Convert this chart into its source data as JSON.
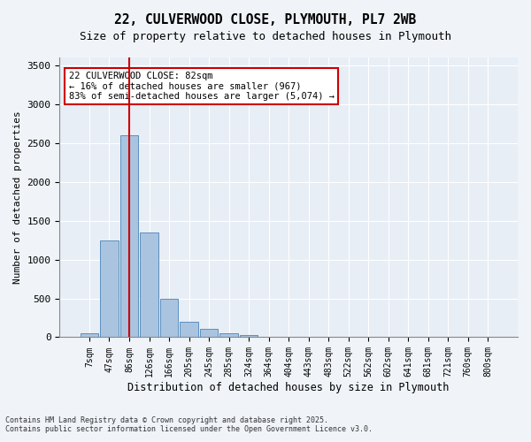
{
  "title_line1": "22, CULVERWOOD CLOSE, PLYMOUTH, PL7 2WB",
  "title_line2": "Size of property relative to detached houses in Plymouth",
  "xlabel": "Distribution of detached houses by size in Plymouth",
  "ylabel": "Number of detached properties",
  "categories": [
    "7sqm",
    "47sqm",
    "86sqm",
    "126sqm",
    "166sqm",
    "205sqm",
    "245sqm",
    "285sqm",
    "324sqm",
    "364sqm",
    "404sqm",
    "443sqm",
    "483sqm",
    "522sqm",
    "562sqm",
    "602sqm",
    "641sqm",
    "681sqm",
    "721sqm",
    "760sqm",
    "800sqm"
  ],
  "values": [
    50,
    1250,
    2600,
    1350,
    500,
    200,
    110,
    55,
    30,
    10,
    10,
    5,
    0,
    0,
    0,
    0,
    0,
    0,
    0,
    0,
    0
  ],
  "bar_color": "#aac4e0",
  "bar_edge_color": "#5a8fc0",
  "vline_color": "#cc0000",
  "vline_x": 2.0,
  "annotation_title": "22 CULVERWOOD CLOSE: 82sqm",
  "annotation_line1": "← 16% of detached houses are smaller (967)",
  "annotation_line2": "83% of semi-detached houses are larger (5,074) →",
  "annotation_box_color": "#cc0000",
  "ylim": [
    0,
    3600
  ],
  "yticks": [
    0,
    500,
    1000,
    1500,
    2000,
    2500,
    3000,
    3500
  ],
  "background_color": "#e8eef5",
  "fig_background_color": "#f0f4f8",
  "footer_line1": "Contains HM Land Registry data © Crown copyright and database right 2025.",
  "footer_line2": "Contains public sector information licensed under the Open Government Licence v3.0."
}
